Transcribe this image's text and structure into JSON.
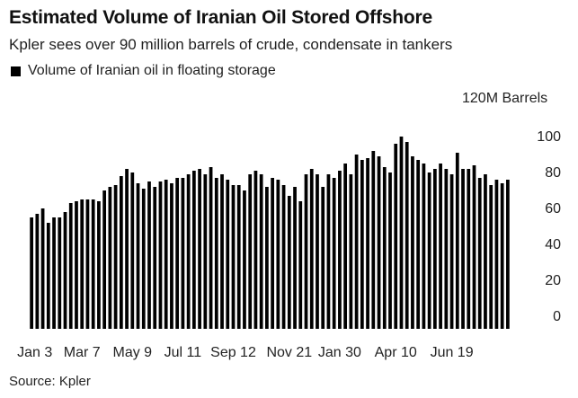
{
  "chart_data": {
    "type": "bar",
    "title": "Estimated Volume of Iranian Oil Stored Offshore",
    "subtitle": "Kpler sees over 90 million barrels of crude, condensate in tankers",
    "legend": [
      {
        "label": "Volume of Iranian oil in floating storage",
        "color": "#000000"
      }
    ],
    "ylabel": "120M Barrels",
    "ylim": [
      0,
      120
    ],
    "yticks": [
      0,
      20,
      40,
      60,
      80,
      100
    ],
    "xtick_labels": [
      "Jan 3",
      "Mar 7",
      "May 9",
      "Jul 11",
      "Sep 12",
      "Nov 21",
      "Jan 30",
      "Apr 10",
      "Jun 19"
    ],
    "xtick_index": [
      0,
      9,
      18,
      27,
      36,
      46,
      55,
      65,
      75
    ],
    "values": [
      62,
      64,
      67,
      59,
      62,
      62,
      65,
      70,
      71,
      72,
      72,
      72,
      71,
      77,
      79,
      80,
      85,
      89,
      87,
      81,
      78,
      82,
      79,
      82,
      83,
      81,
      84,
      84,
      86,
      88,
      89,
      86,
      90,
      84,
      86,
      83,
      80,
      80,
      77,
      86,
      88,
      86,
      79,
      84,
      83,
      80,
      74,
      79,
      71,
      86,
      89,
      86,
      79,
      86,
      84,
      88,
      92,
      86,
      97,
      94,
      95,
      99,
      96,
      90,
      87,
      103,
      107,
      104,
      96,
      94,
      92,
      87,
      89,
      92,
      89,
      86,
      98,
      89,
      89,
      91,
      84,
      86,
      80,
      83,
      81,
      83
    ],
    "source": "Source: Kpler",
    "bar_color": "#000000"
  }
}
